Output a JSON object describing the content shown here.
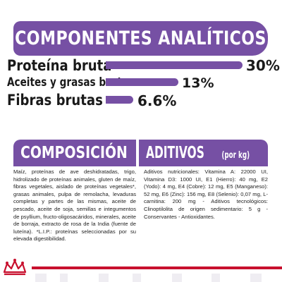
{
  "analytic": {
    "title": "COMPONENTES ANALÍTICOS",
    "rows": [
      {
        "label": "Proteína bruta",
        "value": "30%",
        "percent": 30
      },
      {
        "label": "Aceites y grasas brutos",
        "value": "13%",
        "percent": 13
      },
      {
        "label": "Fibras brutas",
        "value": "6.6%",
        "percent": 6.6
      }
    ]
  },
  "composition": {
    "title": "COMPOSICIÓN",
    "text": "Maíz, proteínas de ave deshidratadas, trigo, hidrolizado de proteínas animales, gluten de maíz, fibras vegetales, aislado de proteínas vegetales*, grasas animales, pulpa de remolacha, levaduras completas y partes de las mismas, aceite de pescado, aceite de soja, semillas e integumentos de psyllium, fructo-oligosacáridos, minerales, aceite de borraja, extracto de rosa de la India (fuente de luteína). *L.I.P.: proteínas seleccionadas por su elevada digestibilidad."
  },
  "additives": {
    "title": "ADITIVOS",
    "title_suffix": "(por kg)",
    "text": "Aditivos nutricionales: Vitamina A: 22000 UI, Vitamina D3: 1000 UI, E1 (Hierro): 40 mg, E2 (Yodo): 4 mg, E4 (Cobre): 12 mg, E5 (Manganeso): 52 mg, E6 (Zinc): 156 mg, E8 (Selenio): 0,07 mg, L-carnitina: 200 mg - Aditivos tecnológicos: Clinoptilolita de origen sedimentario: 5 g - Conservantes - Antioxidantes."
  },
  "colors": {
    "accent": "#7650a4",
    "brand_red": "#c8102e"
  },
  "icons": {
    "logo": "crown-logo"
  }
}
